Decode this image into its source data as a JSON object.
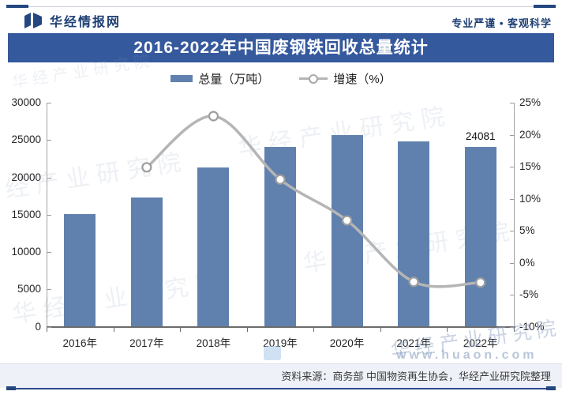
{
  "header": {
    "logo_text": "华经情报网",
    "slogan": "专业严谨 • 客观科学"
  },
  "title": "2016-2022年中国废钢铁回收总量统计",
  "legend": [
    {
      "label": "总量（万吨）"
    },
    {
      "label": "增速（%）"
    }
  ],
  "chart_data": {
    "type": "bar+line",
    "title": "2016-2022年中国废钢铁回收总量统计",
    "categories": [
      "2016年",
      "2017年",
      "2018年",
      "2019年",
      "2020年",
      "2021年",
      "2022年"
    ],
    "series": [
      {
        "name": "总量（万吨）",
        "type": "bar",
        "axis": "left",
        "values": [
          15070,
          17310,
          21278,
          24043,
          25640,
          24860,
          24081
        ]
      },
      {
        "name": "增速（%）",
        "type": "line",
        "axis": "right",
        "values": [
          null,
          14.9,
          22.9,
          13.0,
          6.6,
          -3.0,
          -3.1
        ]
      }
    ],
    "left_axis": {
      "min": 0,
      "max": 30000,
      "step": 5000,
      "ticks": [
        "0",
        "5000",
        "10000",
        "15000",
        "20000",
        "25000",
        "30000"
      ]
    },
    "right_axis": {
      "min": -10,
      "max": 25,
      "step": 5,
      "ticks": [
        "-10%",
        "-5%",
        "0%",
        "5%",
        "10%",
        "15%",
        "20%",
        "25%"
      ]
    },
    "point_label": {
      "series": 0,
      "index": 6,
      "text": "24081"
    },
    "legend_position": "top",
    "grid": false,
    "colors": {
      "bar": "#6081ae",
      "line": "#b5b5b5",
      "marker_fill": "#ffffff",
      "marker_stroke": "#9e9e9e",
      "banner": "#35599d",
      "brand_navy": "#1e3f74"
    }
  },
  "watermarks": {
    "text": "华经产业研究院",
    "url": "www.huaon.com"
  },
  "source": "资料来源：商务部 中国物资再生协会，华经产业研究院整理"
}
